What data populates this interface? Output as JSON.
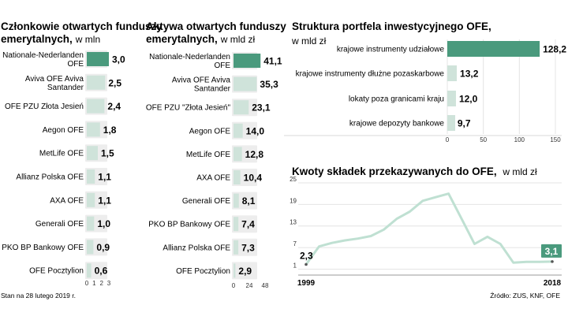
{
  "colors": {
    "accent": "#4a9a7d",
    "light": "#cfe3da",
    "line": "#bfe0d2",
    "grid": "#e4e4e4",
    "badge": "#4a9a7d"
  },
  "footnote_left": "Stan na 28 lutego 2019 r.",
  "footnote_right": "Źródło: ZUS, KNF, OFE",
  "chart_data": [
    {
      "type": "bar",
      "orientation": "horizontal",
      "title": "Członkowie otwartych funduszy emerytalnych,",
      "unit": "w mln",
      "categories": [
        "Nationale-Nederlanden OFE",
        "Aviva OFE Aviva Santander",
        "OFE PZU Złota Jesień",
        "Aegon OFE",
        "MetLife OFE",
        "Allianz Polska OFE",
        "AXA OFE",
        "Generali OFE",
        "PKO BP Bankowy OFE",
        "OFE Pocztylion"
      ],
      "values": [
        3.0,
        2.5,
        2.4,
        1.8,
        1.5,
        1.1,
        1.1,
        1.0,
        0.9,
        0.6
      ],
      "value_labels": [
        "3,0",
        "2,5",
        "2,4",
        "1,8",
        "1,5",
        "1,1",
        "1,1",
        "1,0",
        "0,9",
        "0,6"
      ],
      "ticks": [
        "0",
        "1",
        "2",
        "3"
      ],
      "xlim": [
        0,
        3
      ],
      "highlight_index": 0
    },
    {
      "type": "bar",
      "orientation": "horizontal",
      "title": "Aktywa otwartych funduszy emerytalnych,",
      "unit": "w mld zł",
      "categories": [
        "Nationale-Nederlanden OFE",
        "Aviva OFE Aviva Santander",
        "OFE PZU \"Złota Jesień\"",
        "Aegon OFE",
        "MetLife OFE",
        "AXA OFE",
        "Generali OFE",
        "PKO BP Bankowy OFE",
        "Allianz Polska OFE",
        "OFE Pocztylion"
      ],
      "values": [
        41.1,
        35.3,
        23.1,
        14.0,
        12.8,
        10.4,
        8.1,
        7.4,
        7.3,
        2.9
      ],
      "value_labels": [
        "41,1",
        "35,3",
        "23,1",
        "14,0",
        "12,8",
        "10,4",
        "8,1",
        "7,4",
        "7,3",
        "2,9"
      ],
      "ticks": [
        "0",
        "24",
        "48"
      ],
      "xlim": [
        0,
        48
      ],
      "highlight_index": 0
    },
    {
      "type": "bar",
      "orientation": "horizontal",
      "title": "Struktura portfela inwestycyjnego OFE,",
      "unit": "w mld zł",
      "categories": [
        "krajowe instrumenty udziałowe",
        "krajowe instrumenty dłużne pozaskarbowe",
        "lokaty poza granicami kraju",
        "krajowe depozyty bankowe"
      ],
      "values": [
        128.2,
        13.2,
        12.0,
        9.7
      ],
      "value_labels": [
        "128,2",
        "13,2",
        "12,0",
        "9,7"
      ],
      "ticks": [
        "0",
        "50",
        "100",
        "150"
      ],
      "xlim": [
        0,
        150
      ],
      "highlight_index": 0
    },
    {
      "type": "line",
      "title": "Kwoty składek przekazywanych do OFE,",
      "unit": "w mld zł",
      "x": [
        1999,
        2000,
        2001,
        2002,
        2003,
        2004,
        2005,
        2006,
        2007,
        2008,
        2009,
        2010,
        2011,
        2012,
        2013,
        2014,
        2015,
        2016,
        2017,
        2018
      ],
      "series": [
        {
          "values": [
            2.3,
            7.3,
            8.3,
            9.0,
            9.5,
            10.2,
            12.0,
            15.0,
            17.0,
            20.0,
            21.0,
            22.0,
            15.0,
            8.0,
            10.0,
            8.0,
            2.8,
            3.0,
            3.0,
            3.1
          ]
        }
      ],
      "ylim": [
        0,
        25
      ],
      "yticks": [
        "1",
        "7",
        "13",
        "19",
        "25"
      ],
      "ytick_values": [
        1,
        7,
        13,
        19,
        25
      ],
      "x_start_label": "1999",
      "x_end_label": "2018",
      "start_label": "2,3",
      "end_label": "3,1"
    }
  ]
}
